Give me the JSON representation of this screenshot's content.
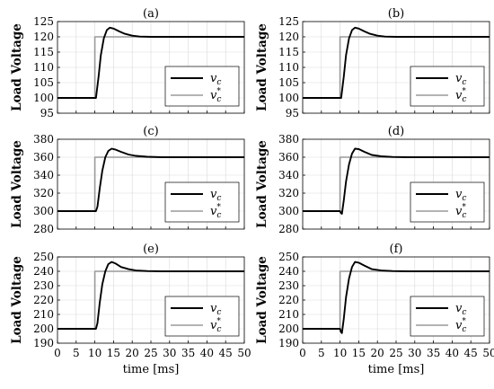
{
  "chart_data": [
    {
      "panel": "(a)",
      "type": "line",
      "ylabel": "Load Voltage",
      "xlabel": "",
      "xlim": [
        0,
        50
      ],
      "ylim": [
        95,
        125
      ],
      "yticks": [
        "95",
        "100",
        "105",
        "110",
        "115",
        "120",
        "125"
      ],
      "xticks": [],
      "grid": true,
      "legend": "right",
      "series": [
        {
          "name": "v_c",
          "color": "#000000",
          "x": [
            0,
            10,
            10.3,
            11,
            11.6,
            12.4,
            13.2,
            14,
            15,
            16.5,
            18,
            20,
            22,
            25,
            30,
            50
          ],
          "y": [
            100,
            100,
            100,
            107,
            114,
            119.5,
            122.2,
            123,
            122.7,
            121.8,
            121,
            120.4,
            120.1,
            120,
            120,
            120
          ]
        },
        {
          "name": "v_c^*",
          "color": "#9a9a9a",
          "x": [
            0,
            10,
            10,
            50
          ],
          "y": [
            100,
            100,
            120,
            120
          ]
        }
      ]
    },
    {
      "panel": "(b)",
      "type": "line",
      "ylabel": "Load Voltage",
      "xlabel": "",
      "xlim": [
        0,
        50
      ],
      "ylim": [
        95,
        125
      ],
      "yticks": [
        "95",
        "100",
        "105",
        "110",
        "115",
        "120",
        "125"
      ],
      "xticks": [],
      "grid": true,
      "legend": "right",
      "series": [
        {
          "name": "v_c",
          "color": "#000000",
          "x": [
            0,
            10,
            10.3,
            11,
            11.6,
            12.4,
            13.2,
            14,
            15,
            16.5,
            18,
            20,
            22,
            25,
            30,
            50
          ],
          "y": [
            100,
            100,
            100,
            107,
            114,
            119.5,
            122.2,
            123,
            122.7,
            121.8,
            121,
            120.4,
            120.1,
            120,
            120,
            120
          ]
        },
        {
          "name": "v_c^*",
          "color": "#9a9a9a",
          "x": [
            0,
            10,
            10,
            50
          ],
          "y": [
            100,
            100,
            120,
            120
          ]
        }
      ]
    },
    {
      "panel": "(c)",
      "type": "line",
      "ylabel": "Load Voltage",
      "xlabel": "",
      "xlim": [
        0,
        50
      ],
      "ylim": [
        280,
        380
      ],
      "yticks": [
        "280",
        "300",
        "320",
        "340",
        "360",
        "380"
      ],
      "xticks": [],
      "grid": true,
      "legend": "right",
      "series": [
        {
          "name": "v_c",
          "color": "#000000",
          "x": [
            0,
            10,
            10.3,
            10.7,
            11.3,
            12,
            12.8,
            13.6,
            14.5,
            15.5,
            17,
            19,
            21,
            24,
            28,
            50
          ],
          "y": [
            300,
            300,
            300,
            305,
            325,
            345,
            360,
            367,
            369.5,
            368.5,
            366,
            363,
            361.5,
            360.5,
            360,
            360
          ]
        },
        {
          "name": "v_c^*",
          "color": "#9a9a9a",
          "x": [
            0,
            10,
            10,
            50
          ],
          "y": [
            300,
            300,
            360,
            360
          ]
        }
      ]
    },
    {
      "panel": "(d)",
      "type": "line",
      "ylabel": "Load Voltage",
      "xlabel": "",
      "xlim": [
        0,
        50
      ],
      "ylim": [
        280,
        380
      ],
      "yticks": [
        "280",
        "300",
        "320",
        "340",
        "360",
        "380"
      ],
      "xticks": [],
      "grid": true,
      "legend": "right",
      "series": [
        {
          "name": "v_c",
          "color": "#000000",
          "x": [
            0,
            10,
            10.2,
            10.5,
            11,
            11.6,
            12.4,
            13.2,
            14,
            15,
            16.5,
            18.5,
            21,
            24,
            28,
            50
          ],
          "y": [
            300,
            300,
            298,
            297,
            312,
            333,
            352,
            364,
            369.5,
            369,
            366,
            362.5,
            361,
            360.3,
            360,
            360
          ]
        },
        {
          "name": "v_c^*",
          "color": "#9a9a9a",
          "x": [
            0,
            10,
            10,
            50
          ],
          "y": [
            300,
            300,
            360,
            360
          ]
        }
      ]
    },
    {
      "panel": "(e)",
      "type": "line",
      "ylabel": "Load Voltage",
      "xlabel": "time [ms]",
      "xlim": [
        0,
        50
      ],
      "ylim": [
        190,
        250
      ],
      "yticks": [
        "190",
        "200",
        "210",
        "220",
        "230",
        "240",
        "250"
      ],
      "xticks": [
        "0",
        "5",
        "10",
        "15",
        "20",
        "25",
        "30",
        "35",
        "40",
        "45",
        "50"
      ],
      "grid": true,
      "legend": "right",
      "series": [
        {
          "name": "v_c",
          "color": "#000000",
          "x": [
            0,
            10,
            10.3,
            10.7,
            11.3,
            12,
            12.8,
            13.6,
            14.5,
            15.5,
            17,
            19,
            21,
            24,
            28,
            50
          ],
          "y": [
            200,
            200,
            200,
            204,
            218,
            231,
            240,
            245,
            246.5,
            245.5,
            243,
            241.5,
            240.6,
            240.2,
            240,
            240
          ]
        },
        {
          "name": "v_c^*",
          "color": "#9a9a9a",
          "x": [
            0,
            10,
            10,
            50
          ],
          "y": [
            200,
            200,
            240,
            240
          ]
        }
      ]
    },
    {
      "panel": "(f)",
      "type": "line",
      "ylabel": "Load Voltage",
      "xlabel": "time [ms]",
      "xlim": [
        0,
        50
      ],
      "ylim": [
        190,
        250
      ],
      "yticks": [
        "190",
        "200",
        "210",
        "220",
        "230",
        "240",
        "250"
      ],
      "xticks": [
        "0",
        "5",
        "10",
        "15",
        "20",
        "25",
        "30",
        "35",
        "40",
        "45",
        "50"
      ],
      "grid": true,
      "legend": "right",
      "series": [
        {
          "name": "v_c",
          "color": "#000000",
          "x": [
            0,
            10,
            10.2,
            10.5,
            11,
            11.6,
            12.4,
            13.2,
            14,
            15,
            16.5,
            18.5,
            21,
            24,
            28,
            50
          ],
          "y": [
            200,
            200,
            198,
            197,
            207,
            222,
            235,
            243,
            246.5,
            246,
            244,
            241.5,
            240.6,
            240.2,
            240,
            240
          ]
        },
        {
          "name": "v_c^*",
          "color": "#9a9a9a",
          "x": [
            0,
            10,
            10,
            50
          ],
          "y": [
            200,
            200,
            240,
            240
          ]
        }
      ]
    }
  ]
}
